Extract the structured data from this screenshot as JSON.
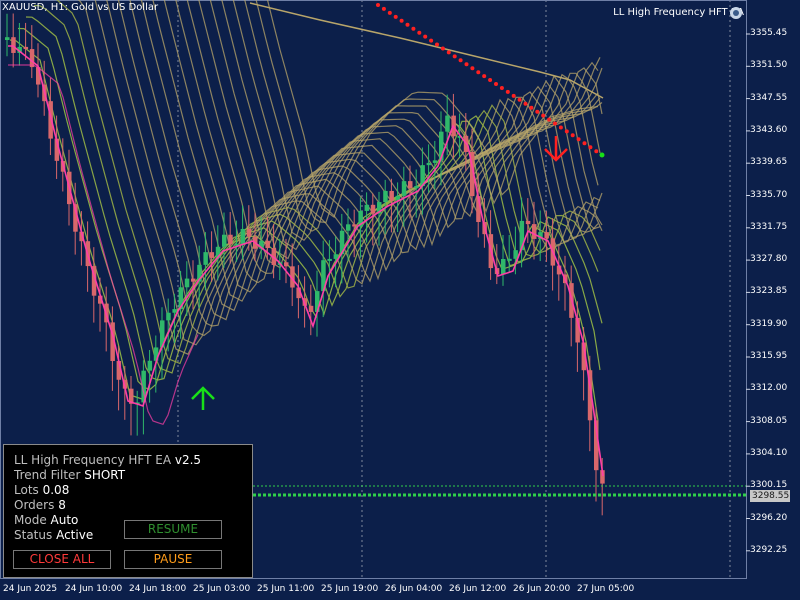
{
  "chart_header": "XAUUSD, H1:  Gold vs US Dollar",
  "ea_label": "LL High Frequency HFT EA",
  "price_axis": [
    "3355.45",
    "3351.50",
    "3347.55",
    "3343.60",
    "3339.65",
    "3335.70",
    "3331.75",
    "3327.80",
    "3323.85",
    "3319.90",
    "3315.95",
    "3312.00",
    "3308.05",
    "3304.10",
    "3300.15",
    "3296.20",
    "3292.25"
  ],
  "current_price": "3298.55",
  "time_axis": [
    "24 Jun 2025",
    "24 Jun 10:00",
    "24 Jun 18:00",
    "25 Jun 03:00",
    "25 Jun 11:00",
    "25 Jun 19:00",
    "26 Jun 04:00",
    "26 Jun 12:00",
    "26 Jun 20:00",
    "27 Jun 05:00"
  ],
  "panel": {
    "title": "LL High Frequency HFT EA",
    "version": "v2.5",
    "trend_label": "Trend Filter",
    "trend_value": "SHORT",
    "lots_label": "Lots",
    "lots_value": "0.08",
    "orders_label": "Orders",
    "orders_value": "8",
    "mode_label": "Mode",
    "mode_value": "Auto",
    "status_label": "Status",
    "status_value": "Active",
    "resume_label": "RESUME",
    "close_all_label": "CLOSE ALL",
    "pause_label": "PAUSE"
  },
  "colors": {
    "bull": "#2fb86a",
    "bear": "#d9676b",
    "ribbon": "#b8a56a",
    "fast_ma": "#ff3fa6",
    "signal_up": "#18e018",
    "signal_down": "#ff2020"
  }
}
